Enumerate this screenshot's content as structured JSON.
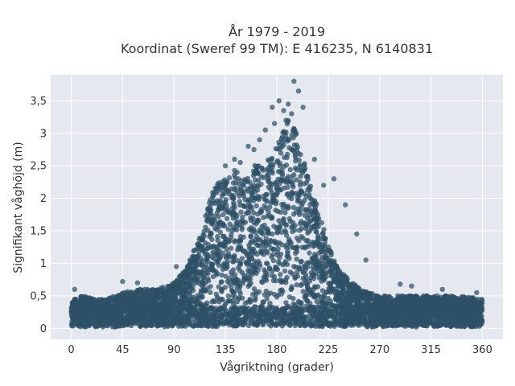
{
  "chart_data": {
    "type": "scatter",
    "title_lines": [
      "År 1979 - 2019",
      "Koordinat (Sweref 99 TM): E 416235, N 6140831"
    ],
    "xlabel": "Vågriktning (grader)",
    "ylabel": "Signifikant våghöjd (m)",
    "xlim": [
      -18,
      378
    ],
    "ylim": [
      -0.17,
      3.9
    ],
    "x_ticks": [
      0,
      45,
      90,
      135,
      180,
      225,
      270,
      315,
      360
    ],
    "x_tick_labels": [
      "0",
      "45",
      "90",
      "135",
      "180",
      "225",
      "270",
      "315",
      "360"
    ],
    "y_ticks": [
      0,
      0.5,
      1,
      1.5,
      2,
      2.5,
      3,
      3.5
    ],
    "y_tick_labels": [
      "0",
      "0,5",
      "1",
      "1,5",
      "2",
      "2,5",
      "3",
      "3,5"
    ],
    "grid": true,
    "legend": false,
    "marker_color": "#2e5066",
    "background_color": "#e5e8ef",
    "envelope": {
      "x": [
        0,
        10,
        20,
        30,
        45,
        60,
        75,
        90,
        100,
        105,
        110,
        115,
        120,
        125,
        130,
        135,
        140,
        145,
        150,
        155,
        160,
        165,
        170,
        175,
        180,
        185,
        190,
        195,
        200,
        205,
        210,
        215,
        220,
        225,
        230,
        240,
        250,
        260,
        270,
        290,
        315,
        340,
        360
      ],
      "y": [
        0.45,
        0.5,
        0.45,
        0.45,
        0.55,
        0.6,
        0.6,
        0.7,
        0.9,
        1.1,
        1.3,
        1.6,
        1.9,
        2.15,
        2.3,
        2.35,
        2.4,
        2.45,
        2.3,
        2.35,
        2.5,
        2.55,
        2.6,
        2.7,
        2.8,
        3.0,
        3.2,
        3.1,
        2.8,
        2.5,
        2.2,
        1.9,
        1.6,
        1.3,
        1.05,
        0.8,
        0.65,
        0.55,
        0.5,
        0.5,
        0.5,
        0.5,
        0.45
      ]
    },
    "outliers": {
      "x": [
        195,
        199,
        182,
        190,
        176,
        186,
        193,
        188,
        203,
        170,
        178,
        197,
        165,
        160,
        143,
        148,
        135,
        230,
        240,
        250,
        258,
        155,
        3,
        45,
        58,
        92,
        298,
        325,
        355,
        288,
        213,
        221
      ],
      "y": [
        3.8,
        3.65,
        3.5,
        3.45,
        3.4,
        3.35,
        3.3,
        3.2,
        3.4,
        3.05,
        3.15,
        3.0,
        2.9,
        2.75,
        2.6,
        2.55,
        2.5,
        2.3,
        1.9,
        1.45,
        1.05,
        2.8,
        0.6,
        0.72,
        0.7,
        0.95,
        0.65,
        0.6,
        0.55,
        0.68,
        2.6,
        2.2
      ]
    }
  }
}
